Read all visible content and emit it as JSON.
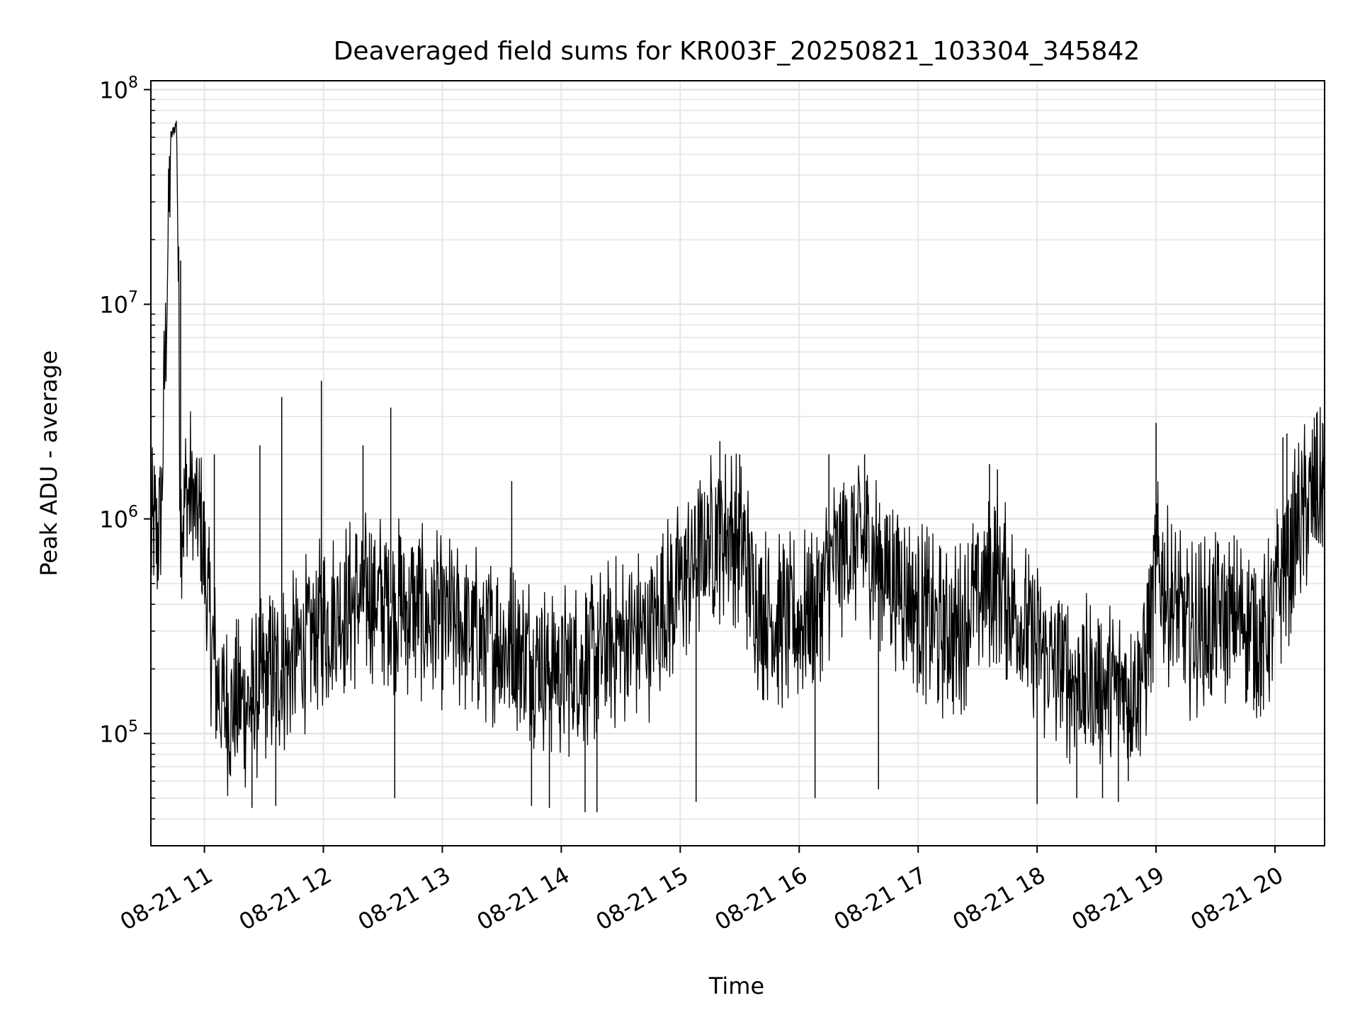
{
  "chart_data": {
    "type": "line",
    "title": "Deaveraged field sums for KR003F_20250821_103304_345842",
    "xlabel": "Time",
    "ylabel": "Peak ADU - average",
    "yscale": "log",
    "ylim": [
      30000,
      110000000
    ],
    "xlim": [
      "2025-08-21 10:33",
      "2025-08-21 20:25"
    ],
    "grid": true,
    "x_ticks": [
      "08-21 11",
      "08-21 12",
      "08-21 13",
      "08-21 14",
      "08-21 15",
      "08-21 16",
      "08-21 17",
      "08-21 18",
      "08-21 19",
      "08-21 20"
    ],
    "y_ticks": [
      {
        "base": "10",
        "exp": "5",
        "value": 100000
      },
      {
        "base": "10",
        "exp": "6",
        "value": 1000000
      },
      {
        "base": "10",
        "exp": "7",
        "value": 10000000
      },
      {
        "base": "10",
        "exp": "8",
        "value": 100000000
      }
    ],
    "series": [
      {
        "color": "#000000",
        "points": [
          [
            "2025-08-21 10:33",
            800000
          ],
          [
            "2025-08-21 10:38",
            900000
          ],
          [
            "2025-08-21 10:43",
            60000000
          ],
          [
            "2025-08-21 10:46",
            70000000
          ],
          [
            "2025-08-21 10:48",
            1100000
          ],
          [
            "2025-08-21 10:53",
            1300000
          ],
          [
            "2025-08-21 10:58",
            900000
          ],
          [
            "2025-08-21 11:03",
            300000
          ],
          [
            "2025-08-21 11:08",
            140000
          ],
          [
            "2025-08-21 11:15",
            130000
          ],
          [
            "2025-08-21 11:25",
            150000
          ],
          [
            "2025-08-21 11:35",
            190000
          ],
          [
            "2025-08-21 11:45",
            220000
          ],
          [
            "2025-08-21 11:55",
            300000
          ],
          [
            "2025-08-21 12:05",
            350000
          ],
          [
            "2025-08-21 12:15",
            400000
          ],
          [
            "2025-08-21 12:25",
            450000
          ],
          [
            "2025-08-21 12:35",
            400000
          ],
          [
            "2025-08-21 12:45",
            380000
          ],
          [
            "2025-08-21 12:55",
            340000
          ],
          [
            "2025-08-21 13:05",
            330000
          ],
          [
            "2025-08-21 13:15",
            300000
          ],
          [
            "2025-08-21 13:25",
            280000
          ],
          [
            "2025-08-21 13:35",
            250000
          ],
          [
            "2025-08-21 13:45",
            230000
          ],
          [
            "2025-08-21 13:55",
            200000
          ],
          [
            "2025-08-21 14:05",
            200000
          ],
          [
            "2025-08-21 14:15",
            220000
          ],
          [
            "2025-08-21 14:25",
            260000
          ],
          [
            "2025-08-21 14:35",
            280000
          ],
          [
            "2025-08-21 14:45",
            300000
          ],
          [
            "2025-08-21 14:55",
            420000
          ],
          [
            "2025-08-21 15:05",
            600000
          ],
          [
            "2025-08-21 15:15",
            800000
          ],
          [
            "2025-08-21 15:25",
            900000
          ],
          [
            "2025-08-21 15:32",
            700000
          ],
          [
            "2025-08-21 15:40",
            380000
          ],
          [
            "2025-08-21 15:50",
            330000
          ],
          [
            "2025-08-21 16:00",
            330000
          ],
          [
            "2025-08-21 16:10",
            450000
          ],
          [
            "2025-08-21 16:20",
            700000
          ],
          [
            "2025-08-21 16:30",
            800000
          ],
          [
            "2025-08-21 16:40",
            650000
          ],
          [
            "2025-08-21 16:50",
            500000
          ],
          [
            "2025-08-21 17:00",
            400000
          ],
          [
            "2025-08-21 17:10",
            300000
          ],
          [
            "2025-08-21 17:20",
            300000
          ],
          [
            "2025-08-21 17:30",
            450000
          ],
          [
            "2025-08-21 17:40",
            550000
          ],
          [
            "2025-08-21 17:50",
            350000
          ],
          [
            "2025-08-21 18:00",
            250000
          ],
          [
            "2025-08-21 18:10",
            200000
          ],
          [
            "2025-08-21 18:20",
            180000
          ],
          [
            "2025-08-21 18:30",
            160000
          ],
          [
            "2025-08-21 18:40",
            160000
          ],
          [
            "2025-08-21 18:50",
            180000
          ],
          [
            "2025-08-21 18:55",
            220000
          ],
          [
            "2025-08-21 19:00",
            600000
          ],
          [
            "2025-08-21 19:05",
            450000
          ],
          [
            "2025-08-21 19:15",
            300000
          ],
          [
            "2025-08-21 19:25",
            320000
          ],
          [
            "2025-08-21 19:35",
            330000
          ],
          [
            "2025-08-21 19:45",
            350000
          ],
          [
            "2025-08-21 19:55",
            280000
          ],
          [
            "2025-08-21 20:05",
            600000
          ],
          [
            "2025-08-21 20:15",
            1100000
          ],
          [
            "2025-08-21 20:25",
            1300000
          ]
        ],
        "spikes_high": [
          [
            "2025-08-21 10:48",
            16000000
          ],
          [
            "2025-08-21 11:05",
            2000000
          ],
          [
            "2025-08-21 11:28",
            2200000
          ],
          [
            "2025-08-21 11:39",
            3700000
          ],
          [
            "2025-08-21 11:59",
            4400000
          ],
          [
            "2025-08-21 12:20",
            2200000
          ],
          [
            "2025-08-21 12:34",
            3300000
          ],
          [
            "2025-08-21 13:35",
            1500000
          ],
          [
            "2025-08-21 15:20",
            2300000
          ],
          [
            "2025-08-21 15:30",
            2000000
          ],
          [
            "2025-08-21 16:15",
            2000000
          ],
          [
            "2025-08-21 16:33",
            2000000
          ],
          [
            "2025-08-21 17:36",
            1800000
          ],
          [
            "2025-08-21 17:40",
            1700000
          ],
          [
            "2025-08-21 19:00",
            2800000
          ],
          [
            "2025-08-21 20:04",
            2400000
          ],
          [
            "2025-08-21 20:06",
            2500000
          ],
          [
            "2025-08-21 20:21",
            3100000
          ],
          [
            "2025-08-21 20:24",
            2800000
          ]
        ],
        "spikes_low": [
          [
            "2025-08-21 11:24",
            45000
          ],
          [
            "2025-08-21 11:36",
            46000
          ],
          [
            "2025-08-21 12:36",
            50000
          ],
          [
            "2025-08-21 13:45",
            46000
          ],
          [
            "2025-08-21 13:54",
            45000
          ],
          [
            "2025-08-21 14:12",
            43000
          ],
          [
            "2025-08-21 14:18",
            43000
          ],
          [
            "2025-08-21 15:08",
            48000
          ],
          [
            "2025-08-21 16:08",
            50000
          ],
          [
            "2025-08-21 16:40",
            55000
          ],
          [
            "2025-08-21 18:00",
            47000
          ],
          [
            "2025-08-21 18:20",
            50000
          ],
          [
            "2025-08-21 18:33",
            50000
          ],
          [
            "2025-08-21 18:41",
            48000
          ],
          [
            "2025-08-21 18:46",
            60000
          ]
        ]
      }
    ]
  }
}
